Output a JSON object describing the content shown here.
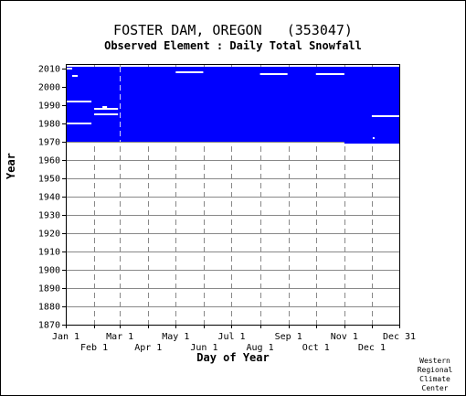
{
  "header": {
    "title": "FOSTER DAM, OREGON   (353047)",
    "subtitle": "Observed Element : Daily Total Snowfall"
  },
  "credit": [
    "Western",
    "Regional",
    "Climate",
    "Center"
  ],
  "colors": {
    "data": "#0000ff",
    "grid": "#888888",
    "background": "#ffffff",
    "axis": "#000000"
  },
  "chart_data": {
    "type": "heatmap",
    "title": "FOSTER DAM, OREGON   (353047)",
    "subtitle": "Observed Element : Daily Total Snowfall",
    "xlabel": "Day of Year",
    "ylabel": "Year",
    "xlim": [
      1,
      365
    ],
    "ylim": [
      1870,
      2011
    ],
    "y_ticks": [
      1870,
      1880,
      1890,
      1900,
      1910,
      1920,
      1930,
      1940,
      1950,
      1960,
      1970,
      1980,
      1990,
      2000,
      2010
    ],
    "x_ticks_upper": [
      {
        "label": "Jan 1",
        "day": 1
      },
      {
        "label": "Mar 1",
        "day": 60
      },
      {
        "label": "May 1",
        "day": 121
      },
      {
        "label": "Jul 1",
        "day": 182
      },
      {
        "label": "Sep 1",
        "day": 244
      },
      {
        "label": "Nov 1",
        "day": 305
      },
      {
        "label": "Dec 31",
        "day": 365
      }
    ],
    "x_ticks_lower": [
      {
        "label": "Feb 1",
        "day": 32
      },
      {
        "label": "Apr 1",
        "day": 91
      },
      {
        "label": "Jun 1",
        "day": 152
      },
      {
        "label": "Aug 1",
        "day": 213
      },
      {
        "label": "Oct 1",
        "day": 274
      },
      {
        "label": "Dec 1",
        "day": 335
      }
    ],
    "grid": true,
    "data_block": {
      "day_start": 1,
      "day_end": 365,
      "year_start": 1970,
      "year_end": 2011
    },
    "data_block_extension": {
      "day_start": 305,
      "day_end": 365,
      "year_start": 1969,
      "year_end": 1970
    },
    "missing_segments": [
      {
        "year": 2010,
        "day_start": 1,
        "day_end": 8
      },
      {
        "year": 2006,
        "day_start": 8,
        "day_end": 14
      },
      {
        "year": 2008,
        "day_start": 121,
        "day_end": 151
      },
      {
        "year": 2007,
        "day_start": 213,
        "day_end": 243
      },
      {
        "year": 2007,
        "day_start": 274,
        "day_end": 305
      },
      {
        "year": 1992,
        "day_start": 1,
        "day_end": 29
      },
      {
        "year": 1989,
        "day_start": 41,
        "day_end": 46
      },
      {
        "year": 1988,
        "day_start": 32,
        "day_end": 58
      },
      {
        "year": 1985,
        "day_start": 32,
        "day_end": 58
      },
      {
        "year": 1984,
        "day_start": 335,
        "day_end": 365
      },
      {
        "year": 1980,
        "day_start": 1,
        "day_end": 29
      },
      {
        "year": 1972,
        "day_start": 336,
        "day_end": 338
      }
    ]
  }
}
